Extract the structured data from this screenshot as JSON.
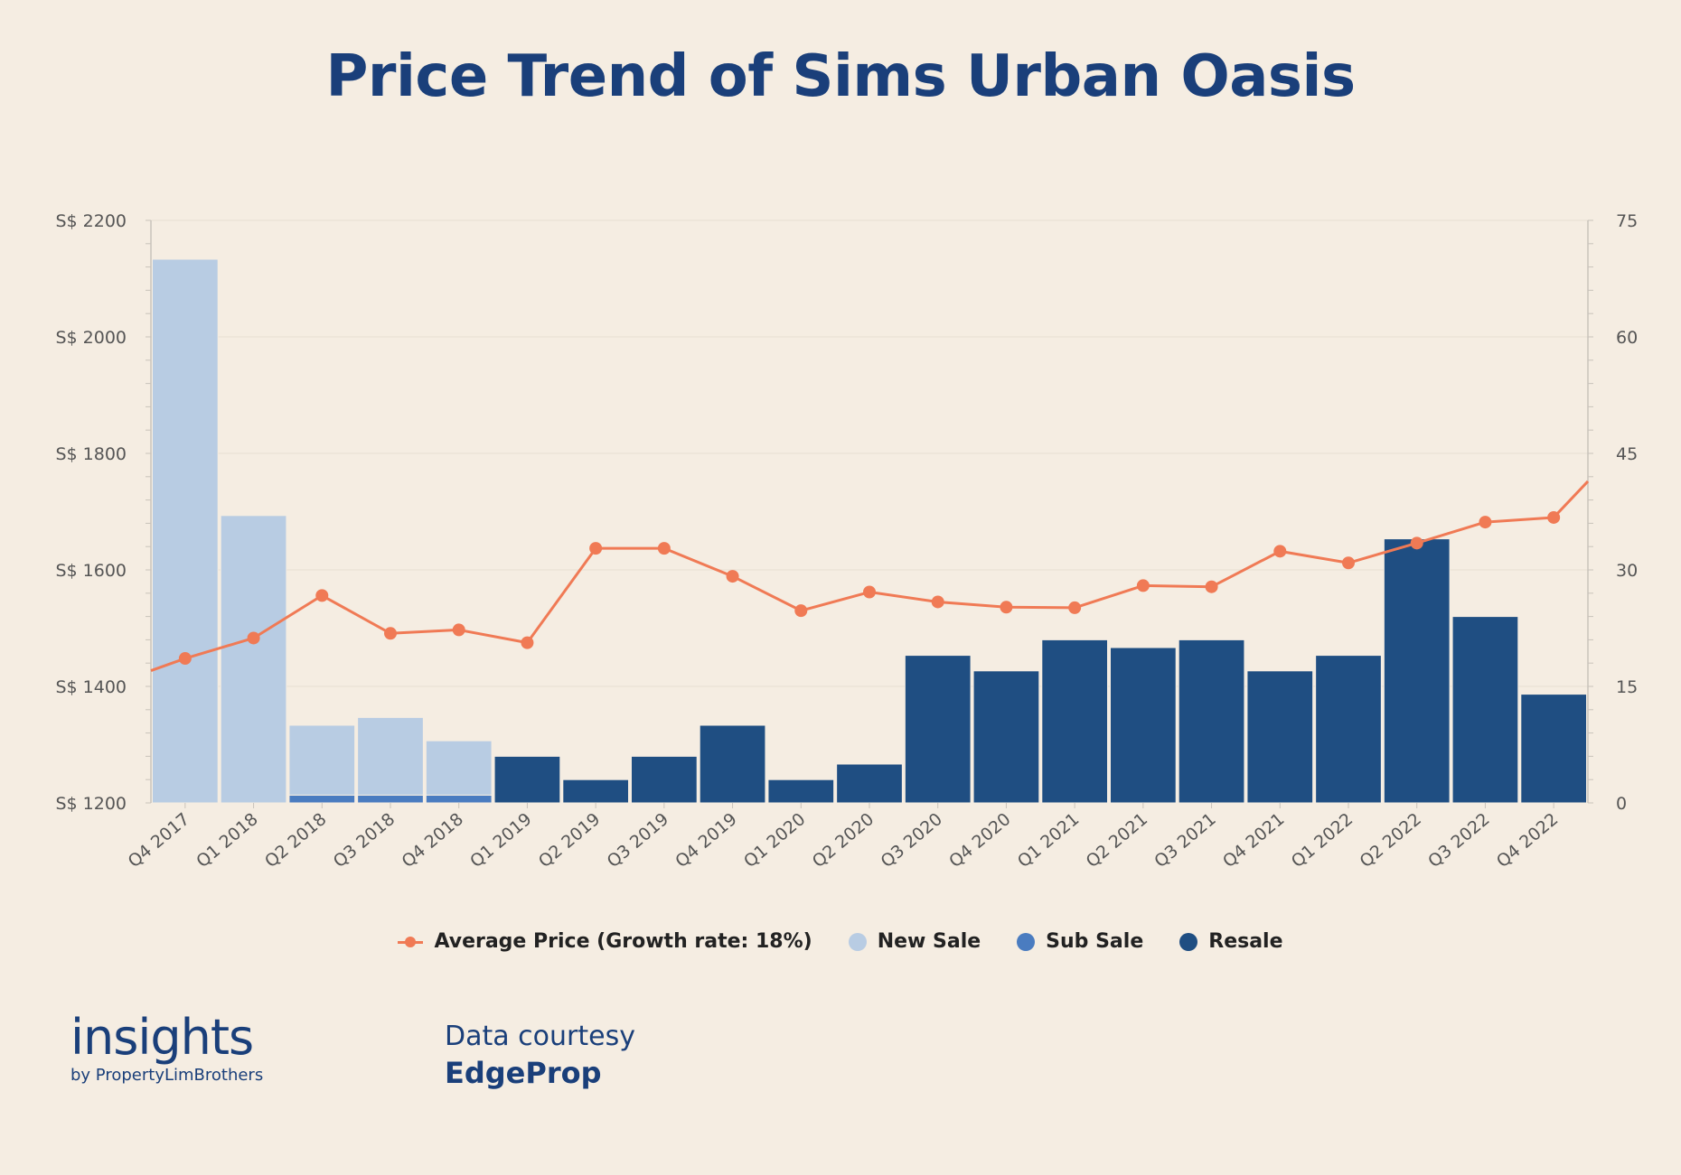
{
  "title": "Price Trend of Sims Urban Oasis",
  "colors": {
    "background": "#f5ede2",
    "title": "#1a3f7a",
    "average_price": "#f07a55",
    "new_sale": "#b8cce3",
    "sub_sale": "#4a7cc0",
    "resale": "#1f4e82"
  },
  "legend": {
    "average_price": "Average Price (Growth rate: 18%)",
    "new_sale": "New Sale",
    "sub_sale": "Sub Sale",
    "resale": "Resale"
  },
  "chart_data": {
    "type": "bar",
    "title": "Price Trend of Sims Urban Oasis",
    "categories": [
      "Q4 2017",
      "Q1 2018",
      "Q2 2018",
      "Q3 2018",
      "Q4 2018",
      "Q1 2019",
      "Q2 2019",
      "Q3 2019",
      "Q4 2019",
      "Q1 2020",
      "Q2 2020",
      "Q3 2020",
      "Q4 2020",
      "Q1 2021",
      "Q2 2021",
      "Q3 2021",
      "Q4 2021",
      "Q1 2022",
      "Q2 2022",
      "Q3 2022",
      "Q4 2022"
    ],
    "left_axis": {
      "ticks": [
        "S$ 1200",
        "S$ 1400",
        "S$ 1600",
        "S$ 1800",
        "S$ 2000",
        "S$ 2200"
      ],
      "ylim": [
        1200,
        2200
      ]
    },
    "right_axis": {
      "ticks": [
        "0",
        "15",
        "30",
        "45",
        "60",
        "75"
      ],
      "ylim": [
        0,
        75
      ]
    },
    "series": [
      {
        "name": "New Sale",
        "type": "bar",
        "axis": "right",
        "values": [
          70,
          37,
          9,
          10,
          7,
          0,
          0,
          0,
          0,
          0,
          0,
          0,
          0,
          0,
          0,
          0,
          0,
          0,
          0,
          0,
          0
        ]
      },
      {
        "name": "Sub Sale",
        "type": "bar",
        "axis": "right",
        "values": [
          0,
          0,
          1,
          1,
          1,
          0,
          0,
          0,
          0,
          0,
          0,
          0,
          0,
          0,
          0,
          0,
          0,
          0,
          0,
          0,
          0
        ]
      },
      {
        "name": "Resale",
        "type": "bar",
        "axis": "right",
        "values": [
          0,
          0,
          0,
          0,
          0,
          6,
          3,
          6,
          10,
          3,
          5,
          19,
          17,
          21,
          20,
          21,
          17,
          19,
          34,
          24,
          14
        ]
      },
      {
        "name": "Average Price (Growth rate: 18%)",
        "type": "line",
        "axis": "left",
        "values": [
          1448,
          1483,
          1556,
          1491,
          1497,
          1475,
          1637,
          1637,
          1589,
          1530,
          1562,
          1545,
          1536,
          1535,
          1573,
          1571,
          1632,
          1612,
          1646,
          1682,
          1690
        ],
        "left_extension": 1427,
        "right_extension": 1752
      }
    ],
    "grid": true,
    "legend_position": "bottom"
  },
  "footer": {
    "brand_main": "insights",
    "brand_sub": "by PropertyLimBrothers",
    "courtesy_top": "Data courtesy",
    "courtesy_bottom": "EdgeProp"
  }
}
